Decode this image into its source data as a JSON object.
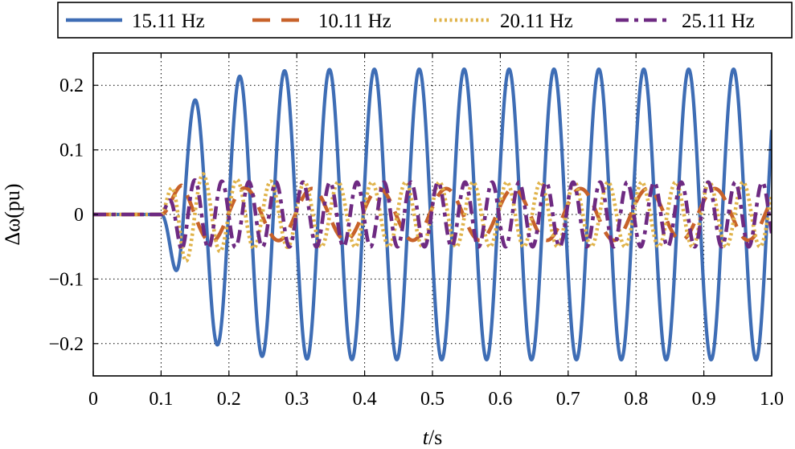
{
  "chart_data": {
    "type": "line",
    "title": "",
    "xlabel": {
      "italic": "t",
      "rest": "/s"
    },
    "ylabel": "Δω(pu)",
    "xlim": [
      0,
      1.0
    ],
    "ylim": [
      -0.25,
      0.25
    ],
    "x_ticks": [
      0,
      0.1,
      0.2,
      0.3,
      0.4,
      0.5,
      0.6,
      0.7,
      0.8,
      0.9,
      1.0
    ],
    "x_tick_labels": [
      "0",
      "0.1",
      "0.2",
      "0.3",
      "0.4",
      "0.5",
      "0.6",
      "0.7",
      "0.8",
      "0.9",
      "1.0"
    ],
    "y_ticks": [
      -0.2,
      -0.1,
      0,
      0.1,
      0.2
    ],
    "y_tick_labels": [
      "−0.2",
      "−0.1",
      "0",
      "0.1",
      "0.2"
    ],
    "grid": true,
    "legend_position": "top",
    "event_time": 0.1,
    "series": [
      {
        "name": "15.11 Hz",
        "frequency_hz": 15.11,
        "steady_amplitude": 0.225,
        "first_peak": 0.08,
        "color": "#3E6DB5",
        "style": "solid"
      },
      {
        "name": "10.11 Hz",
        "frequency_hz": 10.11,
        "steady_amplitude": 0.04,
        "first_peak": 0.055,
        "color": "#C8622A",
        "style": "dashed"
      },
      {
        "name": "20.11 Hz",
        "frequency_hz": 20.11,
        "steady_amplitude": 0.05,
        "first_peak": 0.1,
        "color": "#E0B34A",
        "style": "dotted"
      },
      {
        "name": "25.11 Hz",
        "frequency_hz": 25.11,
        "steady_amplitude": 0.05,
        "first_peak": 0.06,
        "color": "#6E2A82",
        "style": "dashdot"
      }
    ]
  }
}
